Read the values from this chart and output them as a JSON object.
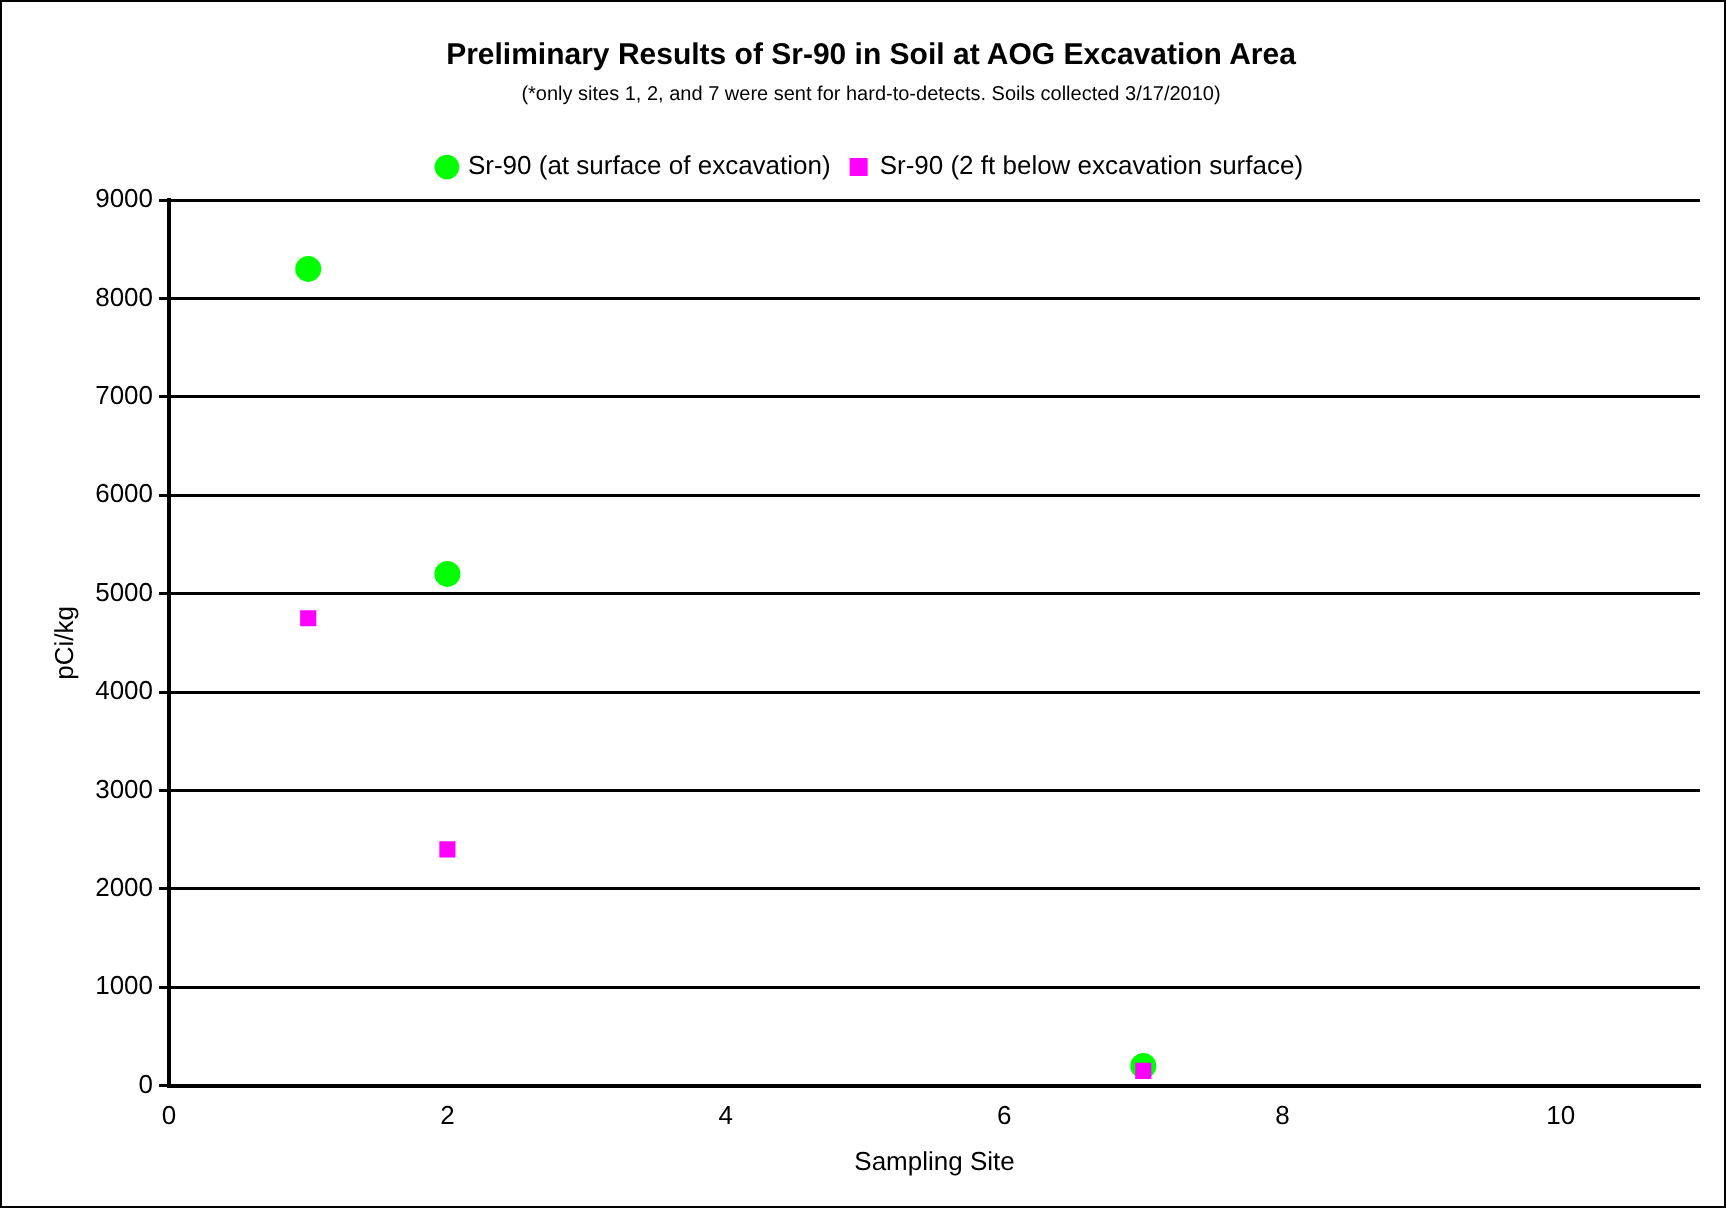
{
  "chart_data": {
    "type": "scatter",
    "title": "Preliminary Results of Sr-90 in Soil at AOG Excavation Area",
    "subtitle": "(*only sites 1, 2, and 7 were sent for hard-to-detects. Soils collected 3/17/2010)",
    "xlabel": "Sampling Site",
    "ylabel": "pCi/kg",
    "series": [
      {
        "name": "Sr-90 (at surface of excavation)",
        "color": "#00ff00",
        "marker": "circle",
        "x": [
          1,
          2,
          7
        ],
        "values": [
          8300,
          5200,
          200
        ]
      },
      {
        "name": "Sr-90 (2 ft below excavation surface)",
        "color": "#ff00ff",
        "marker": "square",
        "x": [
          1,
          2,
          7
        ],
        "values": [
          4750,
          2400,
          150
        ]
      }
    ],
    "xlim": [
      0,
      11
    ],
    "xticks": [
      0,
      2,
      4,
      6,
      8,
      10
    ],
    "ylim": [
      0,
      9000
    ],
    "yticks": [
      0,
      1000,
      2000,
      3000,
      4000,
      5000,
      6000,
      7000,
      8000,
      9000
    ],
    "grid": "y",
    "legend": "top"
  }
}
